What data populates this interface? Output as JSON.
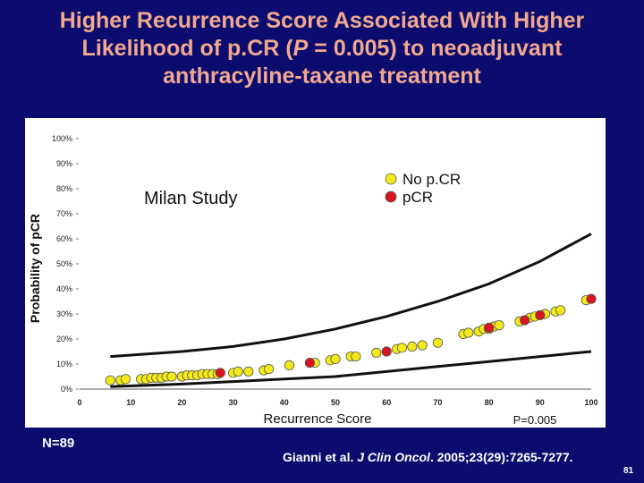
{
  "slide": {
    "title_part1": "Higher Recurrence Score Associated With Higher",
    "title_part2a": "Likelihood of p.CR (",
    "title_p": "P",
    "title_part2b": " = 0.005) to neoadjuvant",
    "title_part3": "anthracyline-taxane treatment",
    "n_label": "N=89",
    "citation_author": "Gianni et al. ",
    "citation_journal": "J Clin Oncol",
    "citation_rest": ". 2005;23(29):7265-7277.",
    "page_number": "81"
  },
  "colors": {
    "background": "#0c0c6e",
    "title": "#f0a890",
    "no_pcr": "#f2ea18",
    "pcr": "#d8141e"
  },
  "chart_data": {
    "type": "scatter",
    "study_label": "Milan Study",
    "xlabel": "Recurrence Score",
    "ylabel": "Probability of pCR",
    "xlim": [
      0,
      100
    ],
    "ylim": [
      0,
      100
    ],
    "x_ticks": [
      "0",
      "10",
      "20",
      "30",
      "40",
      "50",
      "60",
      "70",
      "80",
      "90",
      "100"
    ],
    "y_ticks": [
      "0%",
      "10%",
      "20%",
      "30%",
      "40%",
      "50%",
      "60%",
      "70%",
      "80%",
      "90%",
      "100%"
    ],
    "p_value": "P=0.005",
    "legend": [
      {
        "label": "No p.CR",
        "series": "no_pcr"
      },
      {
        "label": "pCR",
        "series": "pcr"
      }
    ],
    "curves": {
      "upper": [
        [
          6,
          13
        ],
        [
          20,
          15
        ],
        [
          30,
          17
        ],
        [
          40,
          20
        ],
        [
          50,
          24
        ],
        [
          60,
          29
        ],
        [
          70,
          35
        ],
        [
          80,
          42
        ],
        [
          90,
          51
        ],
        [
          100,
          62
        ]
      ],
      "lower": [
        [
          6,
          1
        ],
        [
          20,
          2
        ],
        [
          30,
          3
        ],
        [
          40,
          4
        ],
        [
          50,
          5
        ],
        [
          60,
          7
        ],
        [
          70,
          9
        ],
        [
          80,
          11
        ],
        [
          90,
          13
        ],
        [
          100,
          15
        ]
      ]
    },
    "series": [
      {
        "name": "No p.CR",
        "key": "no_pcr",
        "points": [
          [
            6,
            3.5
          ],
          [
            8,
            3.5
          ],
          [
            9,
            4
          ],
          [
            12,
            4
          ],
          [
            13,
            4
          ],
          [
            14,
            4.5
          ],
          [
            15,
            4.5
          ],
          [
            16,
            4.5
          ],
          [
            17,
            5
          ],
          [
            18,
            5
          ],
          [
            20,
            5
          ],
          [
            21,
            5.5
          ],
          [
            22,
            5.5
          ],
          [
            23,
            5.5
          ],
          [
            24,
            6
          ],
          [
            25,
            6
          ],
          [
            26,
            6
          ],
          [
            27,
            6
          ],
          [
            30,
            6.5
          ],
          [
            31,
            7
          ],
          [
            33,
            7
          ],
          [
            36,
            7.5
          ],
          [
            37,
            8
          ],
          [
            41,
            9.5
          ],
          [
            46,
            10.5
          ],
          [
            49,
            11.5
          ],
          [
            50,
            12
          ],
          [
            53,
            13
          ],
          [
            54,
            13
          ],
          [
            58,
            14.5
          ],
          [
            62,
            16
          ],
          [
            63,
            16.5
          ],
          [
            65,
            17
          ],
          [
            67,
            17.5
          ],
          [
            70,
            18.5
          ],
          [
            75,
            22
          ],
          [
            76,
            22.5
          ],
          [
            78,
            23
          ],
          [
            79,
            24
          ],
          [
            80,
            24
          ],
          [
            81,
            25
          ],
          [
            82,
            25.5
          ],
          [
            86,
            27
          ],
          [
            88,
            28.5
          ],
          [
            89,
            29
          ],
          [
            91,
            30
          ],
          [
            93,
            31
          ],
          [
            94,
            31.5
          ],
          [
            99,
            35.5
          ]
        ]
      },
      {
        "name": "pCR",
        "key": "pcr",
        "points": [
          [
            27.5,
            6.5
          ],
          [
            45,
            10.5
          ],
          [
            60,
            15
          ],
          [
            80,
            24.5
          ],
          [
            87,
            27.5
          ],
          [
            90,
            29.5
          ],
          [
            100,
            36
          ]
        ]
      }
    ]
  }
}
